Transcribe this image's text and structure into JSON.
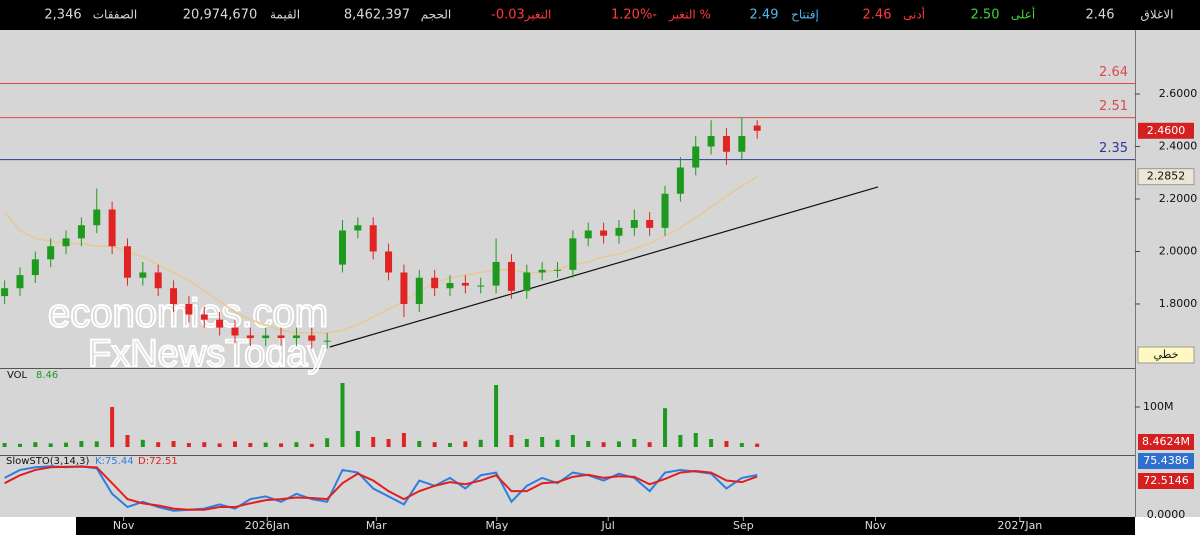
{
  "topbar": [
    {
      "label": "الاغلاق",
      "value": "2.46",
      "color": "#d8d8d8"
    },
    {
      "label": "أعلى",
      "value": "2.50",
      "color": "#3fd33f"
    },
    {
      "label": "أدنى",
      "value": "2.46",
      "color": "#ff3b3b"
    },
    {
      "label": "إفتتاح",
      "value": "2.49",
      "color": "#4fb8e8"
    },
    {
      "label": "التغير %",
      "value": "1.20%-",
      "color": "#ff3b3b"
    },
    {
      "label": "التغير",
      "value": "-0.03",
      "color": "#ff3b3b"
    },
    {
      "label": "الحجم",
      "value": "8,462,397",
      "color": "#d8d8d8"
    },
    {
      "label": "القيمة",
      "value": "20,974,670",
      "color": "#d8d8d8"
    },
    {
      "label": "الصفقات",
      "value": "2,346",
      "color": "#d8d8d8"
    }
  ],
  "chart_data": {
    "type": "candlestick",
    "up_color": "#1d9a1d",
    "down_color": "#e02424",
    "open": [
      1.83,
      1.86,
      1.91,
      1.97,
      2.02,
      2.05,
      2.1,
      2.16,
      2.02,
      1.9,
      1.92,
      1.86,
      1.8,
      1.76,
      1.74,
      1.71,
      1.68,
      1.67,
      1.68,
      1.67,
      1.68,
      1.66,
      1.95,
      2.08,
      2.1,
      2.0,
      1.92,
      1.8,
      1.9,
      1.86,
      1.88,
      1.87,
      1.87,
      1.96,
      1.85,
      1.92,
      1.93,
      1.93,
      2.05,
      2.08,
      2.06,
      2.09,
      2.12,
      2.09,
      2.22,
      2.32,
      2.4,
      2.44,
      2.38,
      2.48
    ],
    "high": [
      1.89,
      1.94,
      2.0,
      2.05,
      2.08,
      2.13,
      2.24,
      2.19,
      2.05,
      1.96,
      1.95,
      1.89,
      1.83,
      1.79,
      1.77,
      1.74,
      1.71,
      1.71,
      1.71,
      1.71,
      1.71,
      1.69,
      2.12,
      2.13,
      2.13,
      2.03,
      1.95,
      1.93,
      1.93,
      1.91,
      1.91,
      1.9,
      2.05,
      1.99,
      1.95,
      1.96,
      1.96,
      2.08,
      2.11,
      2.11,
      2.12,
      2.16,
      2.15,
      2.25,
      2.36,
      2.44,
      2.5,
      2.47,
      2.51,
      2.5
    ],
    "low": [
      1.8,
      1.83,
      1.88,
      1.94,
      1.99,
      2.02,
      2.07,
      1.99,
      1.87,
      1.87,
      1.83,
      1.77,
      1.73,
      1.71,
      1.68,
      1.65,
      1.64,
      1.64,
      1.64,
      1.64,
      1.63,
      1.63,
      1.92,
      2.05,
      1.97,
      1.89,
      1.75,
      1.77,
      1.83,
      1.83,
      1.84,
      1.84,
      1.84,
      1.82,
      1.82,
      1.89,
      1.9,
      1.9,
      2.02,
      2.03,
      2.03,
      2.06,
      2.06,
      2.06,
      2.19,
      2.29,
      2.37,
      2.33,
      2.35,
      2.43
    ],
    "close": [
      1.86,
      1.91,
      1.97,
      2.02,
      2.05,
      2.1,
      2.16,
      2.02,
      1.9,
      1.92,
      1.86,
      1.8,
      1.76,
      1.74,
      1.71,
      1.68,
      1.67,
      1.68,
      1.67,
      1.68,
      1.66,
      1.66,
      2.08,
      2.1,
      2.0,
      1.92,
      1.8,
      1.9,
      1.86,
      1.88,
      1.87,
      1.87,
      1.96,
      1.85,
      1.92,
      1.93,
      1.93,
      2.05,
      2.08,
      2.06,
      2.09,
      2.12,
      2.09,
      2.22,
      2.32,
      2.4,
      2.44,
      2.38,
      2.44,
      2.46
    ],
    "ma": {
      "color": "#e6c990",
      "values": [
        2.15,
        2.08,
        2.05,
        2.04,
        2.03,
        2.03,
        2.02,
        2.02,
        2.0,
        1.98,
        1.95,
        1.92,
        1.89,
        1.85,
        1.81,
        1.77,
        1.74,
        1.72,
        1.7,
        1.69,
        1.69,
        1.69,
        1.7,
        1.72,
        1.75,
        1.78,
        1.81,
        1.85,
        1.88,
        1.9,
        1.91,
        1.92,
        1.93,
        1.93,
        1.92,
        1.92,
        1.93,
        1.95,
        1.96,
        1.98,
        1.99,
        2.01,
        2.03,
        2.06,
        2.09,
        2.13,
        2.17,
        2.21,
        2.25,
        2.2852
      ]
    },
    "price_marker": {
      "value": 2.46,
      "label": "2.4600"
    },
    "xlim": [
      -0.3,
      73.6
    ],
    "xticks": [
      {
        "value": 7.75,
        "label": "Nov"
      },
      {
        "value": 17.1,
        "label": "2026Jan"
      },
      {
        "value": 24.2,
        "label": "Mar"
      },
      {
        "value": 32.05,
        "label": "May"
      },
      {
        "value": 39.3,
        "label": "Jul"
      },
      {
        "value": 48.1,
        "label": "Sep"
      },
      {
        "value": 56.7,
        "label": "Nov"
      },
      {
        "value": 66.1,
        "label": "2027Jan"
      }
    ],
    "ylim": [
      1.556,
      2.844
    ],
    "yticks": [
      {
        "value": 1.8,
        "label": "1.8000"
      },
      {
        "value": 2.0,
        "label": "2.0000"
      },
      {
        "value": 2.2,
        "label": "2.2000"
      },
      {
        "value": 2.4,
        "label": "2.4000"
      },
      {
        "value": 2.6,
        "label": "2.6000"
      }
    ],
    "hlines": [
      {
        "value": 2.64,
        "color": "#e04848"
      },
      {
        "value": 2.51,
        "color": "#e04848"
      },
      {
        "value": 2.35,
        "color": "#2a3a9a"
      }
    ],
    "trendline": {
      "x": [
        21.17,
        56.87
      ],
      "y": [
        1.636,
        2.246
      ]
    },
    "line_style_label": "خطي",
    "watermark": [
      "economies.com",
      "FxNewsToday"
    ],
    "volume": {
      "title": "VOL",
      "current": 8.46,
      "ylim": [
        0,
        195
      ],
      "yticks": [
        {
          "value": 100,
          "label": "100M"
        }
      ],
      "last_label": {
        "value": 8.4624,
        "label": "8.4624M"
      },
      "values": [
        10,
        8,
        12,
        9,
        11,
        15,
        14,
        100,
        30,
        18,
        12,
        15,
        10,
        12,
        9,
        14,
        10,
        11,
        9,
        12,
        8,
        22,
        160,
        40,
        25,
        20,
        35,
        15,
        12,
        10,
        14,
        18,
        155,
        30,
        20,
        25,
        18,
        30,
        15,
        12,
        14,
        20,
        12,
        97,
        30,
        35,
        20,
        15,
        10,
        8.4624
      ]
    },
    "stochastic": {
      "title": "SlowSTO(3,14,3)",
      "k_label": "K:75.44",
      "d_label": "D:72.51",
      "k_color": "#2f7de0",
      "d_color": "#e02020",
      "ylim": [
        0,
        100
      ],
      "yticks": [
        {
          "value": 0,
          "label": "0.0000"
        }
      ],
      "k": [
        70,
        85,
        90,
        92,
        90,
        92,
        88,
        40,
        15,
        25,
        15,
        8,
        10,
        12,
        20,
        12,
        30,
        35,
        25,
        40,
        30,
        25,
        85,
        80,
        50,
        35,
        20,
        65,
        55,
        70,
        50,
        75,
        80,
        25,
        55,
        70,
        60,
        80,
        75,
        65,
        78,
        70,
        45,
        80,
        85,
        82,
        78,
        50,
        70,
        75.4386
      ],
      "d": [
        60,
        75,
        85,
        90,
        91,
        91,
        90,
        60,
        30,
        22,
        18,
        12,
        10,
        10,
        15,
        15,
        22,
        28,
        30,
        33,
        32,
        30,
        60,
        78,
        65,
        45,
        30,
        45,
        55,
        62,
        58,
        65,
        75,
        45,
        45,
        60,
        62,
        72,
        76,
        70,
        73,
        72,
        58,
        68,
        80,
        83,
        80,
        65,
        62,
        72.5146
      ]
    }
  }
}
